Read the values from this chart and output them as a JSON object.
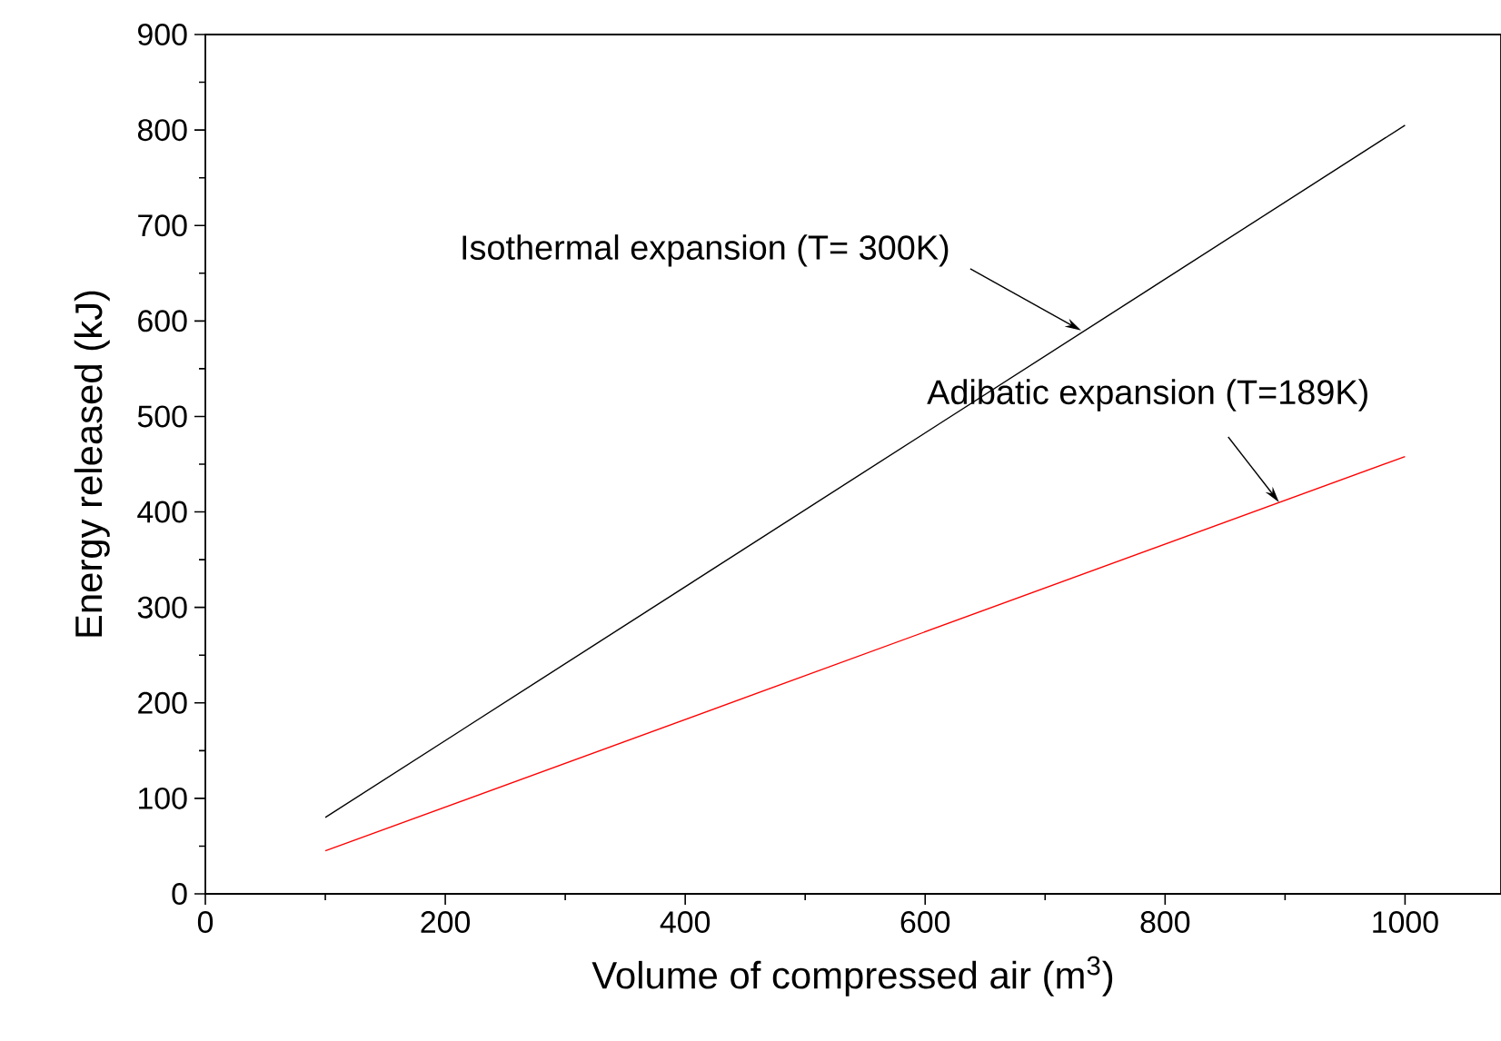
{
  "chart_data": {
    "type": "line",
    "x": [
      100,
      1000
    ],
    "xlabel": "Volume of compressed air (m$^{3}$)",
    "ylabel": "Energy released (kJ)",
    "series": [
      {
        "color": "#000000",
        "values": [
          80,
          805
        ]
      },
      {
        "color": "#ff0000",
        "values": [
          45,
          458
        ]
      }
    ],
    "annotations": [
      {
        "text": "Isothermal expansion (T= 300K)",
        "x": 730,
        "y": 590
      },
      {
        "text": "Adibatic expansion (T=189K)",
        "x": 895,
        "y": 410
      }
    ],
    "xlim": [
      0,
      1080
    ],
    "ylim": [
      0,
      900
    ],
    "xticks": [
      0,
      200,
      400,
      600,
      800,
      1000
    ],
    "yticks": [
      0,
      100,
      200,
      300,
      400,
      500,
      600,
      700,
      800,
      900
    ],
    "grid": false,
    "marker": "none",
    "line_style": "solid"
  }
}
